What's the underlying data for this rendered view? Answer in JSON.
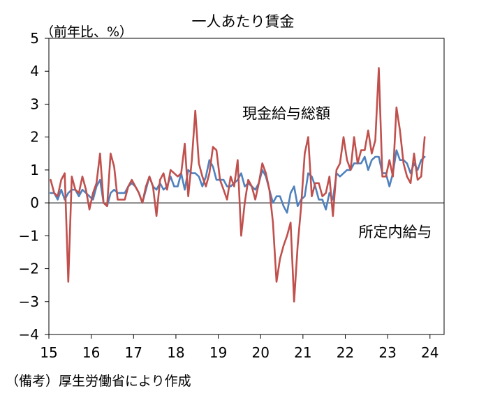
{
  "chart_data": {
    "type": "line",
    "title": "一人あたり賃金",
    "y_unit_label": "（前年比、%）",
    "note": "（備考）厚生労働省により作成",
    "ylim": [
      -4,
      5
    ],
    "yticks": [
      "5",
      "4",
      "3",
      "2",
      "1",
      "0",
      "−1",
      "−2",
      "−3",
      "−4"
    ],
    "xticks": [
      "15",
      "16",
      "17",
      "18",
      "19",
      "20",
      "21",
      "22",
      "23",
      "24"
    ],
    "grid": false,
    "x_start": "2015-01",
    "series": [
      {
        "name": "現金給与総額",
        "color": "#C0504D",
        "values": [
          0.7,
          0.3,
          0.2,
          0.7,
          0.9,
          -2.4,
          0.8,
          0.4,
          0.3,
          0.8,
          0.4,
          -0.2,
          0.3,
          0.6,
          1.5,
          0.0,
          -0.1,
          1.5,
          1.1,
          0.1,
          0.1,
          0.1,
          0.5,
          0.7,
          0.5,
          0.3,
          0.0,
          0.5,
          0.8,
          0.5,
          -0.4,
          0.7,
          0.9,
          0.4,
          1.0,
          0.9,
          0.8,
          0.9,
          1.8,
          0.2,
          1.3,
          2.8,
          1.2,
          0.8,
          0.5,
          0.9,
          1.7,
          1.6,
          0.7,
          0.4,
          0.1,
          0.8,
          0.5,
          1.3,
          -1.0,
          0.0,
          0.7,
          0.5,
          0.1,
          0.6,
          1.2,
          0.9,
          0.4,
          -0.6,
          -2.4,
          -1.7,
          -1.3,
          -1.0,
          -0.6,
          -3.0,
          -1.3,
          -0.1,
          1.5,
          2.0,
          0.2,
          0.6,
          0.6,
          0.2,
          0.3,
          0.8,
          -0.4,
          1.0,
          1.2,
          2.0,
          1.3,
          1.0,
          2.0,
          1.2,
          1.6,
          1.6,
          2.2,
          1.5,
          1.9,
          4.1,
          0.8,
          0.8,
          1.3,
          0.8,
          2.9,
          2.2,
          1.2,
          0.8,
          0.6,
          1.5,
          0.7,
          0.8,
          2.0
        ]
      },
      {
        "name": "所定内給与",
        "color": "#4F81BD",
        "values": [
          0.3,
          0.3,
          0.1,
          0.4,
          0.1,
          0.3,
          0.4,
          0.4,
          0.2,
          0.4,
          0.3,
          0.2,
          0.1,
          0.5,
          0.7,
          0.0,
          -0.1,
          0.3,
          0.4,
          0.3,
          0.3,
          0.3,
          0.5,
          0.6,
          0.5,
          0.3,
          0.0,
          0.4,
          0.8,
          0.5,
          0.4,
          0.6,
          0.4,
          0.5,
          0.8,
          0.5,
          0.5,
          0.9,
          0.4,
          1.0,
          0.9,
          0.9,
          0.8,
          0.5,
          0.8,
          1.3,
          1.1,
          0.7,
          0.7,
          0.7,
          0.5,
          0.5,
          0.6,
          0.7,
          0.9,
          0.5,
          0.6,
          0.5,
          0.4,
          0.6,
          1.0,
          0.8,
          0.4,
          0.0,
          0.2,
          0.2,
          -0.1,
          -0.3,
          0.3,
          0.5,
          -0.1,
          0.1,
          0.2,
          0.9,
          0.8,
          0.5,
          0.1,
          0.1,
          -0.2,
          0.3,
          0.1,
          0.9,
          0.8,
          0.9,
          1.0,
          1.0,
          1.2,
          1.2,
          1.2,
          1.4,
          1.0,
          1.3,
          1.4,
          1.4,
          0.9,
          0.9,
          0.5,
          0.9,
          1.6,
          1.3,
          1.3,
          1.2,
          0.9,
          1.2,
          1.0,
          1.3,
          1.4
        ]
      }
    ]
  }
}
